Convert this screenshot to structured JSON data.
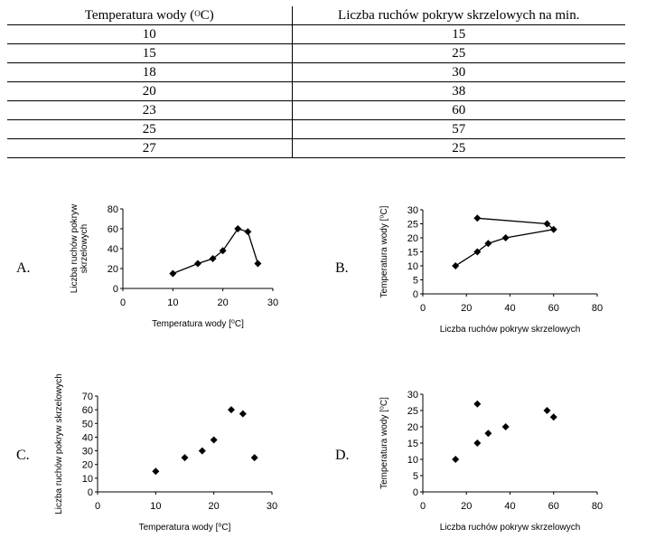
{
  "table": {
    "header": {
      "col1_main": "Temperatura wody (",
      "col1_sup": "O",
      "col1_tail": "C)",
      "col2": "Liczba ruchów pokryw skrzelowych na min."
    },
    "rows": [
      {
        "temp": "10",
        "moves": "15"
      },
      {
        "temp": "15",
        "moves": "25"
      },
      {
        "temp": "18",
        "moves": "30"
      },
      {
        "temp": "20",
        "moves": "38"
      },
      {
        "temp": "23",
        "moves": "60"
      },
      {
        "temp": "25",
        "moves": "57"
      },
      {
        "temp": "27",
        "moves": "25"
      }
    ]
  },
  "options": {
    "a": "A.",
    "b": "B.",
    "c": "C.",
    "d": "D."
  },
  "chart_data": [
    {
      "id": "A",
      "type": "line",
      "markers": "diamond",
      "connected": true,
      "x": [
        10,
        15,
        18,
        20,
        23,
        25,
        27
      ],
      "y": [
        15,
        25,
        30,
        38,
        60,
        57,
        25
      ],
      "xlim": [
        0,
        30
      ],
      "xticks": [
        0,
        10,
        20,
        30
      ],
      "ylim": [
        0,
        80
      ],
      "yticks": [
        0,
        20,
        40,
        60,
        80
      ],
      "xlabel": "Temperatura wody [⁰C]",
      "ylabel_lines": [
        "Liczba ruchów pokryw",
        "skrzelowych"
      ],
      "grid": false
    },
    {
      "id": "B",
      "type": "line",
      "markers": "diamond",
      "connected": true,
      "x": [
        15,
        25,
        30,
        38,
        60,
        57,
        25
      ],
      "y": [
        10,
        15,
        18,
        20,
        23,
        25,
        27
      ],
      "xlim": [
        0,
        80
      ],
      "xticks": [
        0,
        20,
        40,
        60,
        80
      ],
      "ylim": [
        0,
        30
      ],
      "yticks": [
        0,
        5,
        10,
        15,
        20,
        25,
        30
      ],
      "xlabel": "Liczba ruchów pokryw skrzelowych",
      "ylabel_lines": [
        "Temperatura wody [⁰C]"
      ],
      "grid": false
    },
    {
      "id": "C",
      "type": "scatter",
      "markers": "diamond",
      "connected": false,
      "x": [
        10,
        15,
        18,
        20,
        23,
        25,
        27
      ],
      "y": [
        15,
        25,
        30,
        38,
        60,
        57,
        25
      ],
      "xlim": [
        0,
        30
      ],
      "xticks": [
        0,
        10,
        20,
        30
      ],
      "ylim": [
        0,
        70
      ],
      "yticks": [
        0,
        10,
        20,
        30,
        40,
        50,
        60,
        70
      ],
      "xlabel": "Temperatura wody [⁰C]",
      "ylabel_lines": [
        "Liczba ruchów pokryw skrzelowych"
      ],
      "grid": false
    },
    {
      "id": "D",
      "type": "scatter",
      "markers": "diamond",
      "connected": false,
      "x": [
        15,
        25,
        30,
        38,
        60,
        57,
        25
      ],
      "y": [
        10,
        15,
        18,
        20,
        23,
        25,
        27
      ],
      "xlim": [
        0,
        80
      ],
      "xticks": [
        0,
        20,
        40,
        60,
        80
      ],
      "ylim": [
        0,
        30
      ],
      "yticks": [
        0,
        5,
        10,
        15,
        20,
        25,
        30
      ],
      "xlabel": "Liczba ruchów pokryw skrzelowych",
      "ylabel_lines": [
        "Temperatura wody [⁰C]"
      ],
      "grid": false
    }
  ]
}
